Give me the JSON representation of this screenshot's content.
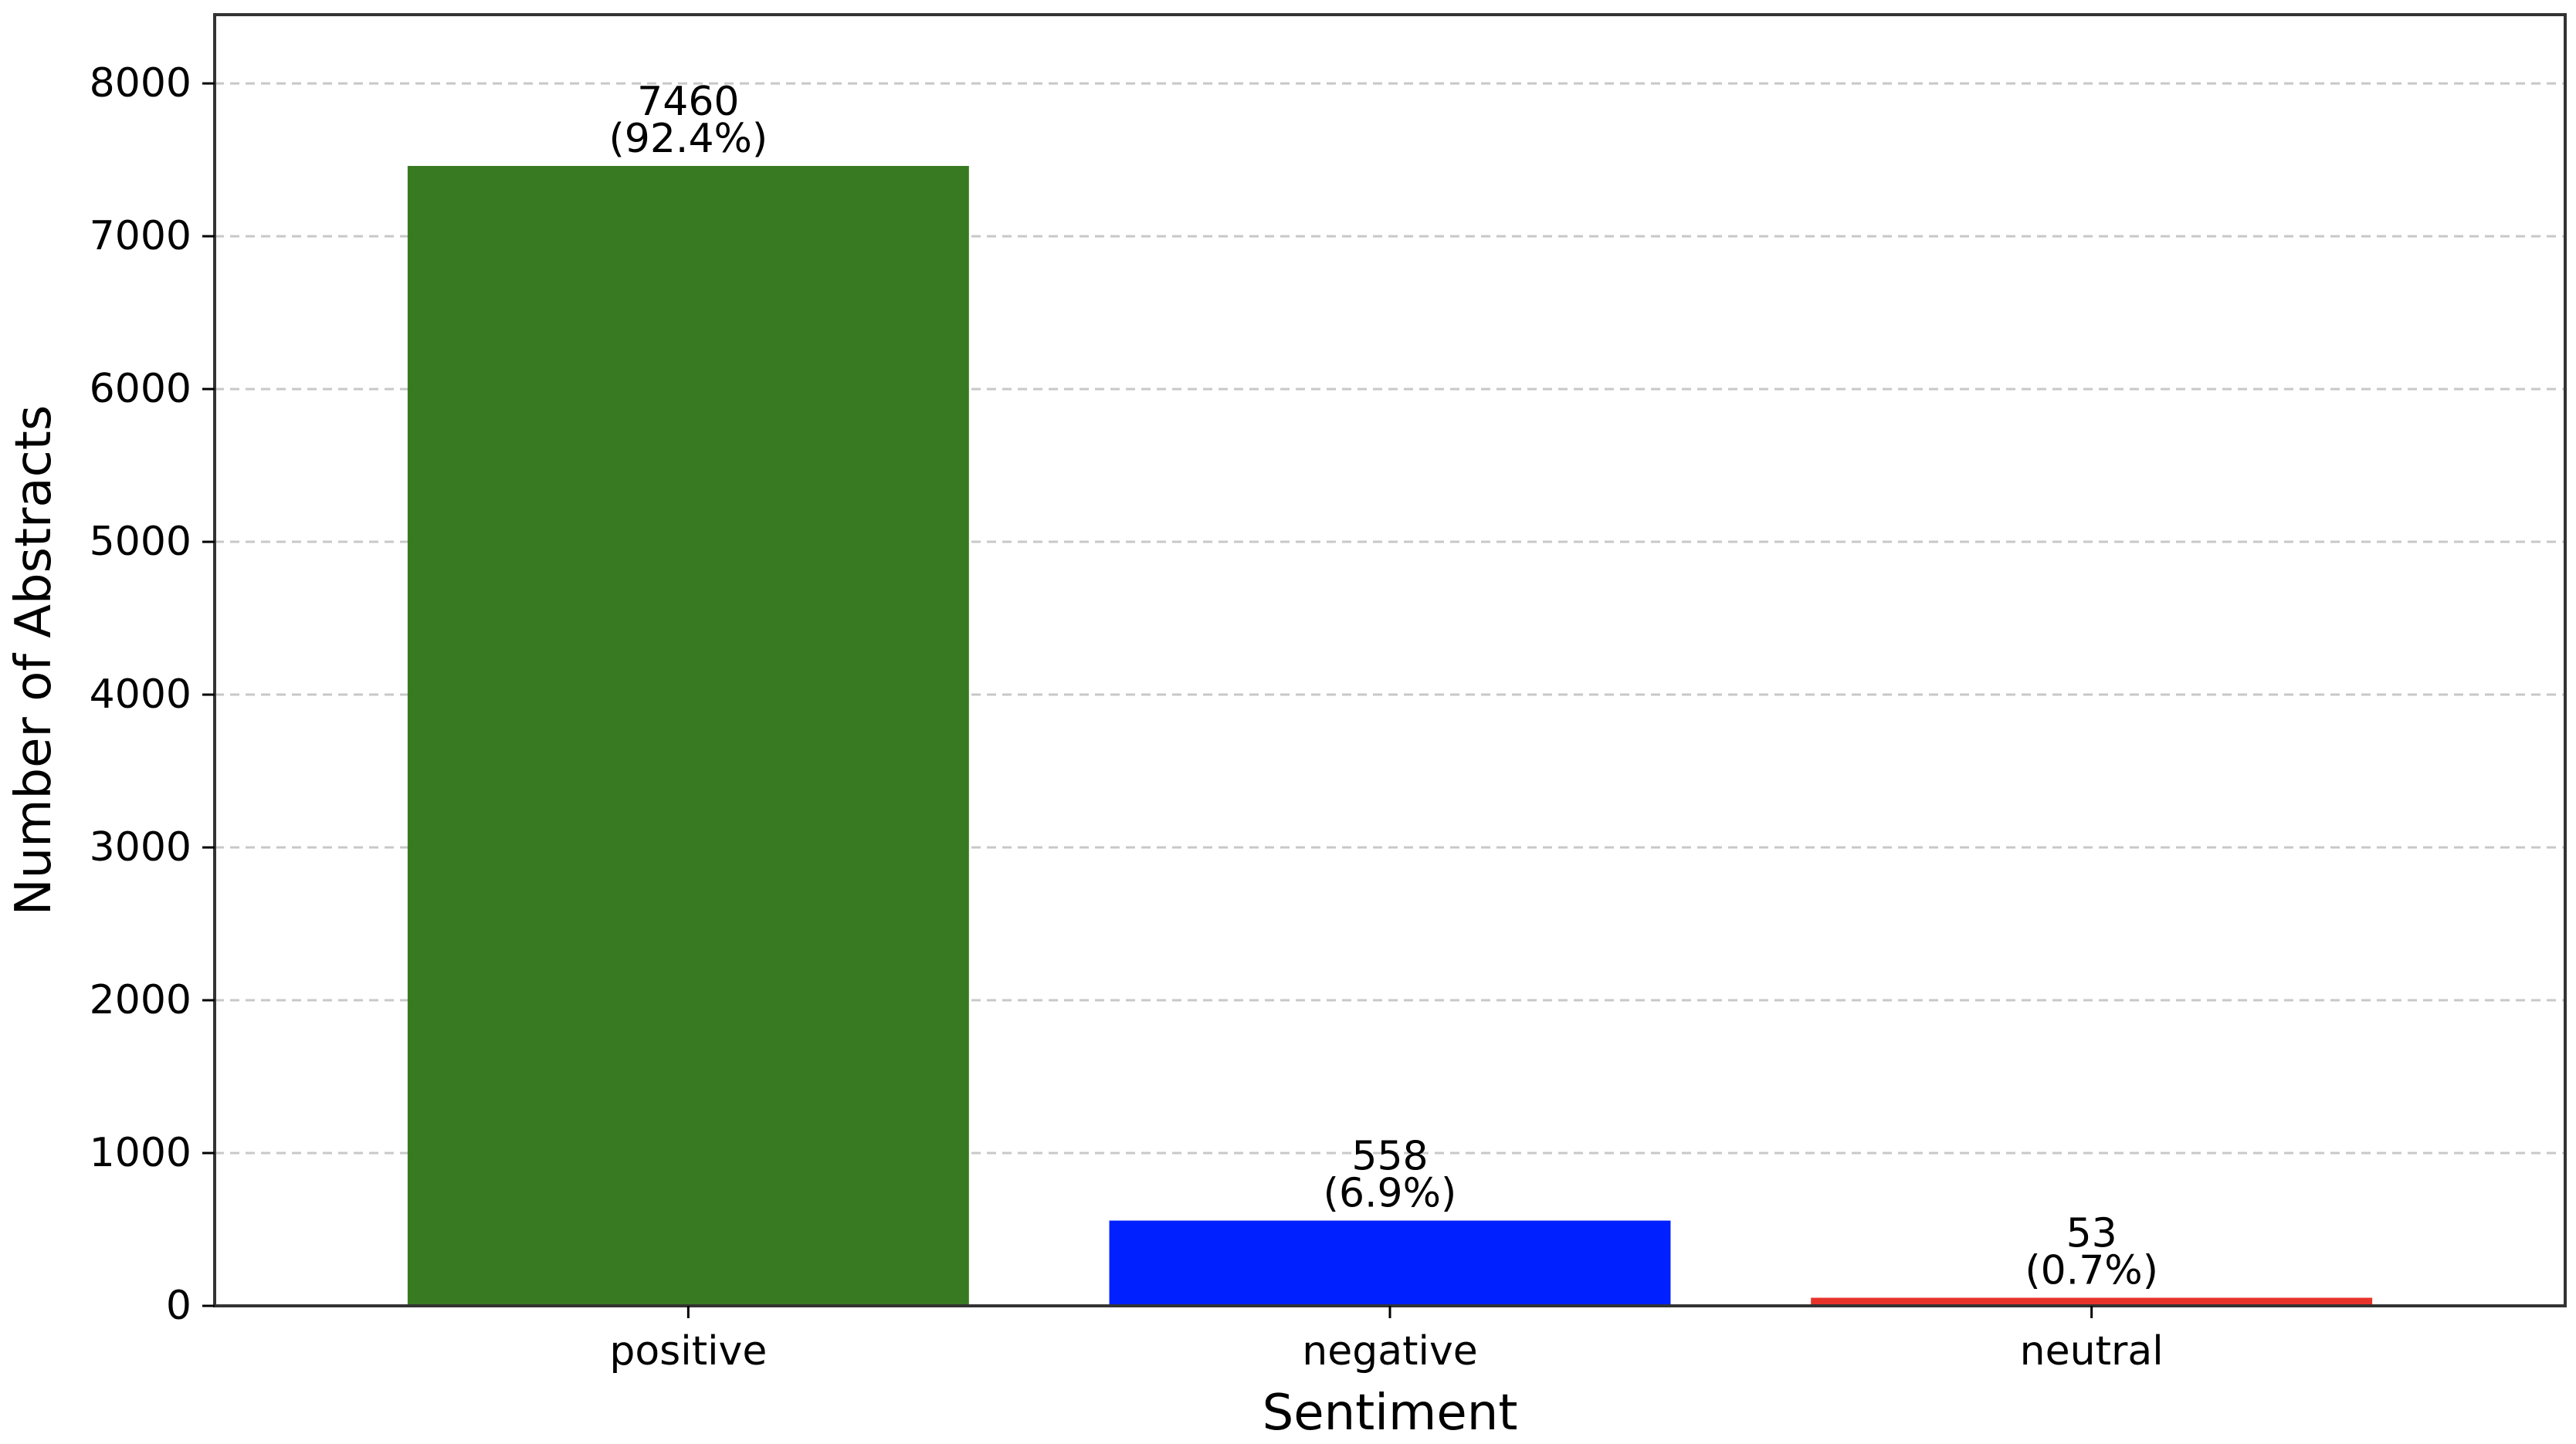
{
  "chart_data": {
    "type": "bar",
    "title": "",
    "xlabel": "Sentiment",
    "ylabel": "Number of Abstracts",
    "categories": [
      "positive",
      "negative",
      "neutral"
    ],
    "values": [
      7460,
      558,
      53
    ],
    "value_labels": [
      "7460",
      "558",
      "53"
    ],
    "percent_labels": [
      "(92.4%)",
      "(6.9%)",
      "(0.7%)"
    ],
    "colors": [
      "#387a22",
      "#0020ff",
      "#e8332a"
    ],
    "ylim": [
      0,
      8450
    ],
    "yticks": [
      0,
      1000,
      2000,
      3000,
      4000,
      5000,
      6000,
      7000,
      8000
    ],
    "ytick_labels": [
      "0",
      "1000",
      "2000",
      "3000",
      "4000",
      "5000",
      "6000",
      "7000",
      "8000"
    ],
    "grid": "y-dashed",
    "legend": "none"
  }
}
